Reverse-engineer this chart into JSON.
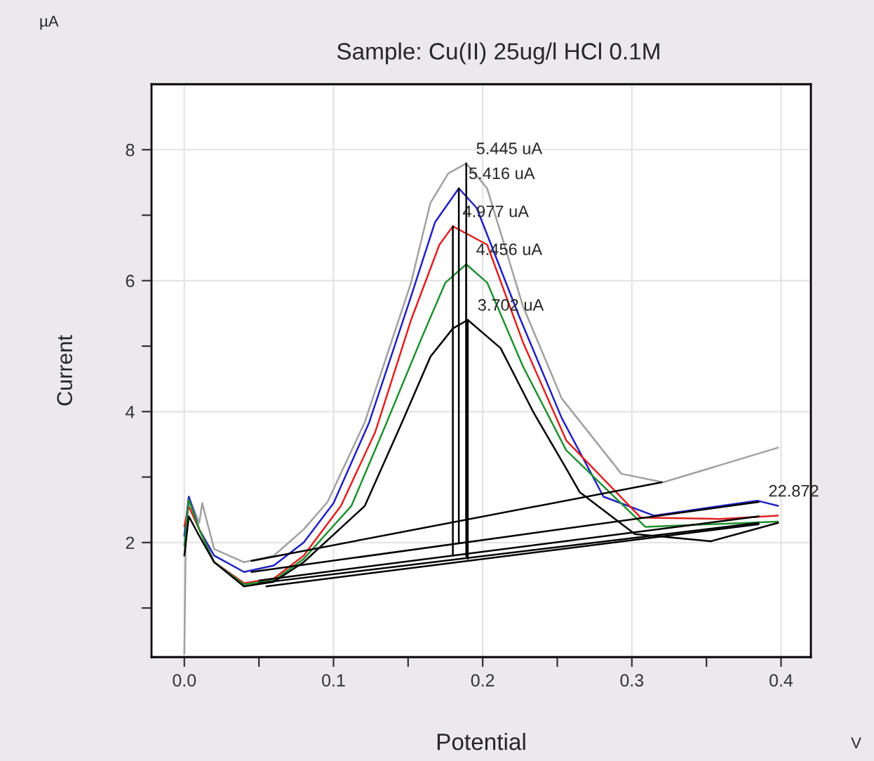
{
  "chart_data": {
    "type": "line",
    "title": "Sample: Cu(II) 25ug/l HCl 0.1M",
    "xlabel": "Potential",
    "ylabel": "Current",
    "annotations": [
      "µA",
      "V",
      {
        "text": "5.445 uA",
        "x": 0.189,
        "y": 7.79
      },
      {
        "text": "5.416 uA",
        "x": 0.184,
        "y": 7.41
      },
      {
        "text": "4.977 uA",
        "x": 0.18,
        "y": 6.83
      },
      {
        "text": "4.456 uA",
        "x": 0.189,
        "y": 6.25
      },
      {
        "text": "3.702 uA",
        "x": 0.19,
        "y": 5.4
      },
      {
        "text": "22.872",
        "x": 0.385,
        "y": 2.56
      }
    ],
    "xlim": [
      -0.022,
      0.42
    ],
    "ylim": [
      0.25,
      9
    ],
    "xticks": [
      {
        "value": 0,
        "label": "0.0"
      },
      {
        "value": 0.05,
        "label": null
      },
      {
        "value": 0.1,
        "label": "0.1"
      },
      {
        "value": 0.15,
        "label": null
      },
      {
        "value": 0.2,
        "label": "0.2"
      },
      {
        "value": 0.25,
        "label": null
      },
      {
        "value": 0.3,
        "label": "0.3"
      },
      {
        "value": 0.35,
        "label": null
      },
      {
        "value": 0.4,
        "label": "0.4"
      }
    ],
    "yticks": [
      {
        "value": 1,
        "label": null
      },
      2,
      {
        "value": 3,
        "label": null
      },
      4,
      {
        "value": 5,
        "label": null
      },
      6,
      {
        "value": 7,
        "label": null
      },
      8
    ],
    "grid": true,
    "marker": "none",
    "line_style": "solid",
    "series": [
      {
        "color": "#a0a0a0",
        "x": [
          0.0,
          0.001,
          0.003,
          0.01,
          0.012,
          0.02,
          0.04,
          0.06,
          0.08,
          0.096,
          0.121,
          0.152,
          0.165,
          0.177,
          0.189,
          0.203,
          0.227,
          0.253,
          0.293,
          0.321,
          0.398
        ],
        "values": [
          0.3,
          2.1,
          2.7,
          2.3,
          2.6,
          1.9,
          1.7,
          1.8,
          2.2,
          2.62,
          3.84,
          5.97,
          7.19,
          7.64,
          7.79,
          7.41,
          5.61,
          4.2,
          3.05,
          2.92,
          3.45
        ]
      },
      {
        "color": "#2020c0",
        "x": [
          0.0,
          0.003,
          0.01,
          0.02,
          0.04,
          0.06,
          0.08,
          0.1,
          0.124,
          0.152,
          0.168,
          0.184,
          0.196,
          0.224,
          0.253,
          0.281,
          0.315,
          0.384,
          0.398
        ],
        "values": [
          2.1,
          2.7,
          2.2,
          1.8,
          1.55,
          1.65,
          2.0,
          2.6,
          3.84,
          5.76,
          6.89,
          7.41,
          7.11,
          5.48,
          3.9,
          2.7,
          2.41,
          2.64,
          2.56
        ]
      },
      {
        "color": "#e02020",
        "x": [
          0.0,
          0.003,
          0.01,
          0.02,
          0.04,
          0.06,
          0.08,
          0.105,
          0.128,
          0.152,
          0.171,
          0.18,
          0.203,
          0.227,
          0.256,
          0.306,
          0.359,
          0.398
        ],
        "values": [
          2.25,
          2.55,
          2.2,
          1.7,
          1.38,
          1.45,
          1.8,
          2.56,
          3.69,
          5.4,
          6.55,
          6.83,
          6.55,
          5.06,
          3.56,
          2.38,
          2.36,
          2.41
        ]
      },
      {
        "color": "#209030",
        "x": [
          0.0,
          0.003,
          0.01,
          0.02,
          0.04,
          0.06,
          0.08,
          0.112,
          0.133,
          0.159,
          0.175,
          0.189,
          0.203,
          0.227,
          0.256,
          0.309,
          0.398
        ],
        "values": [
          1.95,
          2.65,
          2.2,
          1.7,
          1.36,
          1.42,
          1.75,
          2.56,
          3.69,
          5.12,
          5.97,
          6.25,
          5.97,
          4.69,
          3.41,
          2.24,
          2.32
        ]
      },
      {
        "color": "#000000",
        "x": [
          0.0,
          0.003,
          0.01,
          0.02,
          0.04,
          0.06,
          0.08,
          0.121,
          0.146,
          0.165,
          0.18,
          0.19,
          0.212,
          0.234,
          0.256,
          0.265,
          0.302,
          0.353,
          0.398
        ],
        "values": [
          1.8,
          2.4,
          2.1,
          1.7,
          1.33,
          1.4,
          1.7,
          2.56,
          3.84,
          4.84,
          5.27,
          5.4,
          4.97,
          3.99,
          3.13,
          2.77,
          2.13,
          2.02,
          2.3
        ]
      },
      {
        "color": "#000000",
        "x": [
          0.045,
          0.32
        ],
        "values": [
          1.72,
          2.92
        ]
      },
      {
        "color": "#000000",
        "x": [
          0.045,
          0.385
        ],
        "values": [
          1.55,
          2.62
        ]
      },
      {
        "color": "#000000",
        "x": [
          0.05,
          0.385
        ],
        "values": [
          1.42,
          2.4
        ]
      },
      {
        "color": "#000000",
        "x": [
          0.05,
          0.385
        ],
        "values": [
          1.38,
          2.3
        ]
      },
      {
        "color": "#000000",
        "x": [
          0.055,
          0.385
        ],
        "values": [
          1.33,
          2.28
        ]
      },
      {
        "color": "#000000",
        "x": [
          0.189,
          0.189
        ],
        "values": [
          2.35,
          7.79
        ]
      },
      {
        "color": "#000000",
        "x": [
          0.184,
          0.184
        ],
        "values": [
          1.99,
          7.41
        ]
      },
      {
        "color": "#000000",
        "x": [
          0.18,
          0.18
        ],
        "values": [
          1.8,
          6.83
        ]
      },
      {
        "color": "#000000",
        "x": [
          0.189,
          0.189
        ],
        "values": [
          1.79,
          6.25
        ]
      },
      {
        "color": "#000000",
        "x": [
          0.19,
          0.19
        ],
        "values": [
          1.75,
          5.4
        ]
      }
    ]
  }
}
